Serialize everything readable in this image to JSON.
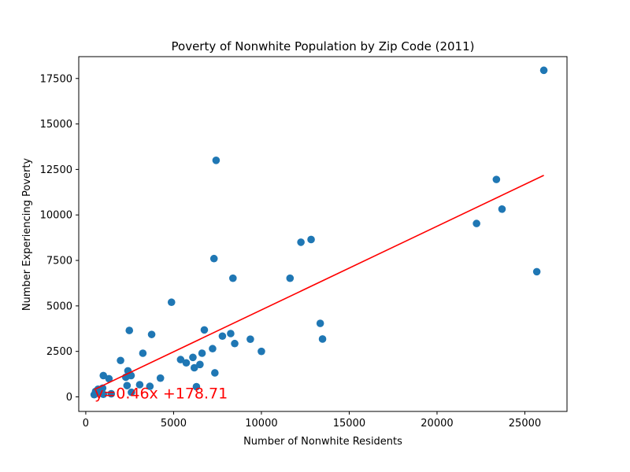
{
  "chart_data": {
    "type": "scatter",
    "title": "Poverty of Nonwhite Population by Zip Code (2011)",
    "xlabel": "Number of Nonwhite Residents",
    "ylabel": "Number Experiencing Poverty",
    "xlim": [
      -400,
      27400
    ],
    "ylim": [
      -800,
      18700
    ],
    "xticks": [
      0,
      5000,
      10000,
      15000,
      20000,
      25000
    ],
    "xtick_labels": [
      "0",
      "5000",
      "10000",
      "15000",
      "20000",
      "25000"
    ],
    "yticks": [
      0,
      2500,
      5000,
      7500,
      10000,
      12500,
      15000,
      17500
    ],
    "ytick_labels": [
      "0",
      "2500",
      "5000",
      "7500",
      "10000",
      "12500",
      "15000",
      "17500"
    ],
    "grid": false,
    "legend": "none",
    "marker_color": "#1f77b4",
    "points": [
      {
        "x": 480,
        "y": 120
      },
      {
        "x": 560,
        "y": 300
      },
      {
        "x": 620,
        "y": 200
      },
      {
        "x": 700,
        "y": 420
      },
      {
        "x": 800,
        "y": 380
      },
      {
        "x": 900,
        "y": 260
      },
      {
        "x": 960,
        "y": 480
      },
      {
        "x": 1000,
        "y": 140
      },
      {
        "x": 1000,
        "y": 1170
      },
      {
        "x": 1320,
        "y": 1000
      },
      {
        "x": 1450,
        "y": 170
      },
      {
        "x": 1980,
        "y": 2000
      },
      {
        "x": 2280,
        "y": 1080
      },
      {
        "x": 2350,
        "y": 620
      },
      {
        "x": 2400,
        "y": 1430
      },
      {
        "x": 2480,
        "y": 3650
      },
      {
        "x": 2580,
        "y": 1170
      },
      {
        "x": 2600,
        "y": 250
      },
      {
        "x": 3070,
        "y": 670
      },
      {
        "x": 3250,
        "y": 2400
      },
      {
        "x": 3650,
        "y": 580
      },
      {
        "x": 3750,
        "y": 3430
      },
      {
        "x": 4250,
        "y": 1030
      },
      {
        "x": 4880,
        "y": 5200
      },
      {
        "x": 5400,
        "y": 2050
      },
      {
        "x": 5720,
        "y": 1870
      },
      {
        "x": 6100,
        "y": 2170
      },
      {
        "x": 6180,
        "y": 1600
      },
      {
        "x": 6300,
        "y": 560
      },
      {
        "x": 6500,
        "y": 1780
      },
      {
        "x": 6620,
        "y": 2400
      },
      {
        "x": 6750,
        "y": 3680
      },
      {
        "x": 7220,
        "y": 2650
      },
      {
        "x": 7300,
        "y": 7600
      },
      {
        "x": 7350,
        "y": 1320
      },
      {
        "x": 7420,
        "y": 13000
      },
      {
        "x": 7780,
        "y": 3340
      },
      {
        "x": 8250,
        "y": 3480
      },
      {
        "x": 8380,
        "y": 6520
      },
      {
        "x": 8480,
        "y": 2930
      },
      {
        "x": 9370,
        "y": 3170
      },
      {
        "x": 10000,
        "y": 2500
      },
      {
        "x": 11630,
        "y": 6520
      },
      {
        "x": 12250,
        "y": 8500
      },
      {
        "x": 12830,
        "y": 8650
      },
      {
        "x": 13350,
        "y": 4040
      },
      {
        "x": 13480,
        "y": 3180
      },
      {
        "x": 22250,
        "y": 9530
      },
      {
        "x": 23380,
        "y": 11950
      },
      {
        "x": 23700,
        "y": 10320
      },
      {
        "x": 25680,
        "y": 6880
      },
      {
        "x": 26080,
        "y": 17950
      }
    ],
    "trendline": {
      "color": "#ff0000",
      "slope": 0.46,
      "intercept": 178.71,
      "x_range": [
        480,
        26080
      ]
    },
    "annotation": {
      "text": "y=0.46x +178.71",
      "color": "#ff0000",
      "x": 500,
      "y": 180
    }
  }
}
